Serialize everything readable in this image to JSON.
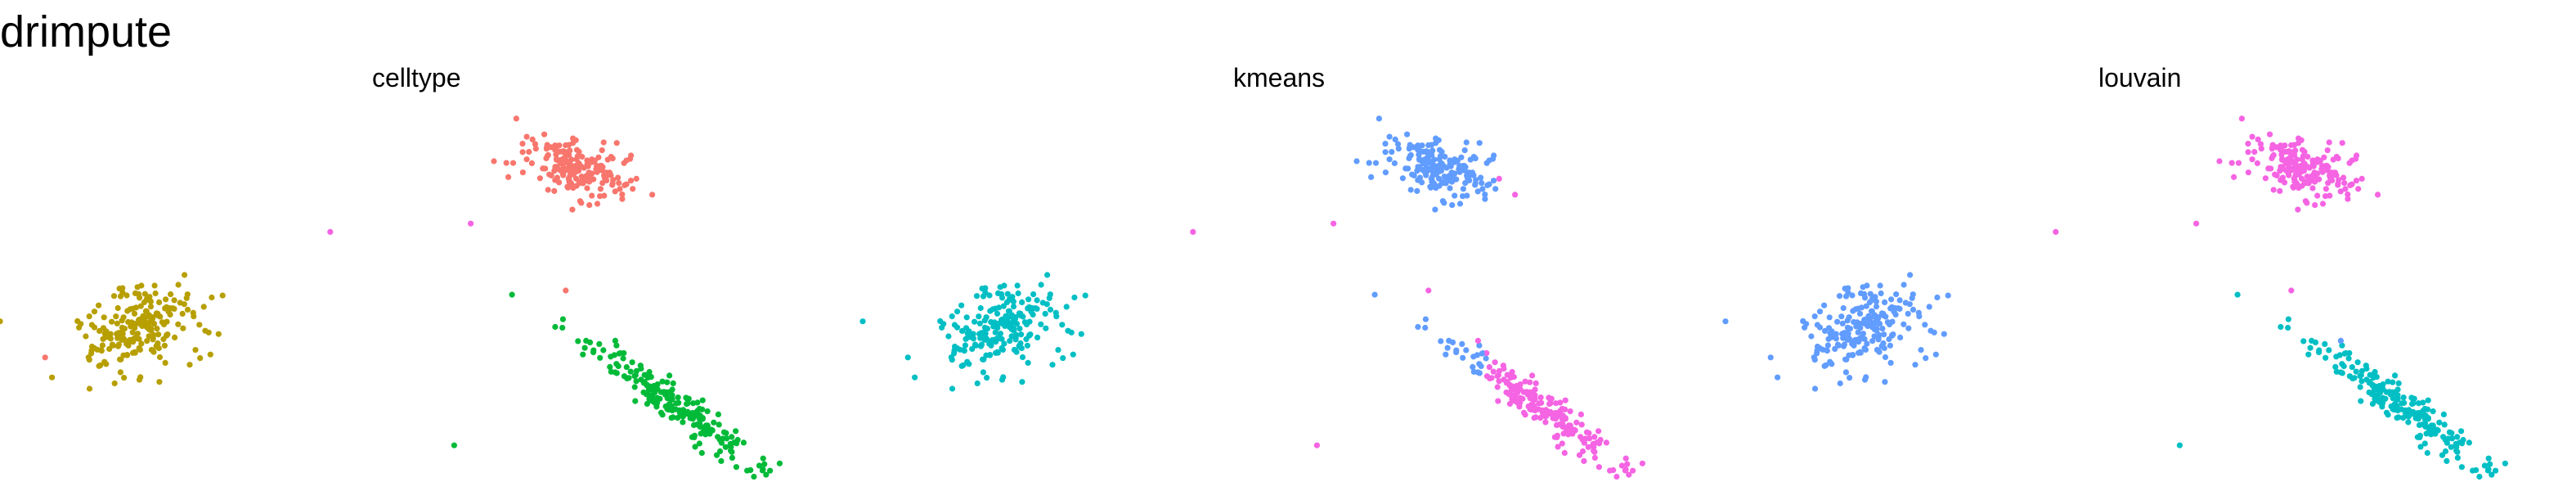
{
  "page": {
    "title": "drimpute"
  },
  "colors": {
    "red": "#F8766D",
    "olive": "#B79F00",
    "green": "#00BA38",
    "cyan": "#00BFC4",
    "blue": "#619CFF",
    "magenta": "#F564E3"
  },
  "chart_data": [
    {
      "type": "scatter",
      "title": "celltype",
      "grid": false,
      "axes": "none",
      "clusters": [
        {
          "color_key": "red",
          "center": [
            7.2,
            7.55
          ],
          "spread": [
            1.25,
            0.55
          ],
          "tilt": -0.28,
          "n": 190
        },
        {
          "color_key": "olive",
          "center": [
            -3.4,
            3.7
          ],
          "spread": [
            1.45,
            0.95
          ],
          "tilt": 0.25,
          "n": 210
        },
        {
          "color_key": "green",
          "center": [
            9.6,
            1.8
          ],
          "spread": [
            2.3,
            0.36
          ],
          "tilt": -0.62,
          "n": 210
        }
      ],
      "outliers": [
        {
          "x": 1.2,
          "y": 6.0,
          "color_key": "magenta"
        },
        {
          "x": 4.6,
          "y": 6.2,
          "color_key": "magenta"
        },
        {
          "x": 5.6,
          "y": 4.5,
          "color_key": "green"
        },
        {
          "x": 6.9,
          "y": 4.6,
          "color_key": "red"
        },
        {
          "x": 8.1,
          "y": 3.4,
          "color_key": "green"
        },
        {
          "x": 4.2,
          "y": 0.9,
          "color_key": "green"
        },
        {
          "x": -5.7,
          "y": 3.0,
          "color_key": "red"
        }
      ],
      "xlim": [
        -6,
        13
      ],
      "ylim": [
        0.2,
        9
      ]
    },
    {
      "type": "scatter",
      "title": "kmeans",
      "grid": false,
      "axes": "none",
      "clusters": [
        {
          "color_key": "blue",
          "center": [
            7.2,
            7.55
          ],
          "spread": [
            1.25,
            0.55
          ],
          "tilt": -0.28,
          "n": 190,
          "split_x": 8.6,
          "split_color_key": "magenta"
        },
        {
          "color_key": "cyan",
          "center": [
            -3.4,
            3.7
          ],
          "spread": [
            1.45,
            0.95
          ],
          "tilt": 0.25,
          "n": 210
        },
        {
          "color_key": "magenta",
          "center": [
            9.6,
            1.8
          ],
          "spread": [
            2.3,
            0.36
          ],
          "tilt": -0.62,
          "n": 210,
          "split_x": 8.3,
          "split_color_key": "blue",
          "split_side": "left"
        }
      ],
      "outliers": [
        {
          "x": 1.2,
          "y": 6.0,
          "color_key": "magenta"
        },
        {
          "x": 4.6,
          "y": 6.2,
          "color_key": "magenta"
        },
        {
          "x": 5.6,
          "y": 4.5,
          "color_key": "blue"
        },
        {
          "x": 6.9,
          "y": 4.6,
          "color_key": "magenta"
        },
        {
          "x": 8.1,
          "y": 3.4,
          "color_key": "magenta"
        },
        {
          "x": 4.2,
          "y": 0.9,
          "color_key": "magenta"
        },
        {
          "x": -5.7,
          "y": 3.0,
          "color_key": "cyan"
        }
      ],
      "xlim": [
        -6,
        13
      ],
      "ylim": [
        0.2,
        9
      ]
    },
    {
      "type": "scatter",
      "title": "louvain",
      "grid": false,
      "axes": "none",
      "clusters": [
        {
          "color_key": "magenta",
          "center": [
            7.2,
            7.55
          ],
          "spread": [
            1.25,
            0.55
          ],
          "tilt": -0.28,
          "n": 190
        },
        {
          "color_key": "blue",
          "center": [
            -3.4,
            3.7
          ],
          "spread": [
            1.45,
            0.95
          ],
          "tilt": 0.25,
          "n": 210
        },
        {
          "color_key": "cyan",
          "center": [
            9.6,
            1.8
          ],
          "spread": [
            2.3,
            0.36
          ],
          "tilt": -0.62,
          "n": 210
        }
      ],
      "outliers": [
        {
          "x": 1.2,
          "y": 6.0,
          "color_key": "magenta"
        },
        {
          "x": 4.6,
          "y": 6.2,
          "color_key": "magenta"
        },
        {
          "x": 5.6,
          "y": 4.5,
          "color_key": "cyan"
        },
        {
          "x": 6.9,
          "y": 4.6,
          "color_key": "magenta"
        },
        {
          "x": 8.1,
          "y": 3.4,
          "color_key": "blue"
        },
        {
          "x": 4.2,
          "y": 0.9,
          "color_key": "cyan"
        },
        {
          "x": -5.7,
          "y": 3.0,
          "color_key": "blue"
        }
      ],
      "xlim": [
        -6,
        13
      ],
      "ylim": [
        0.2,
        9
      ]
    }
  ]
}
